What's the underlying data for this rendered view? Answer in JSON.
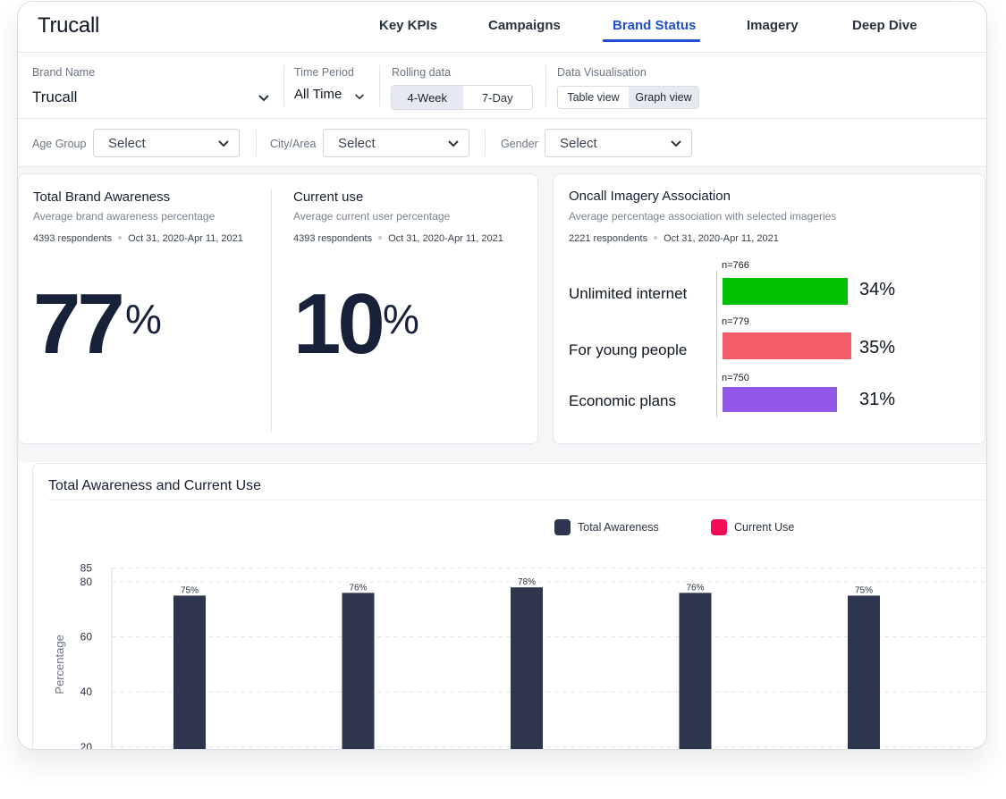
{
  "app": {
    "logo": "Trucall"
  },
  "nav": {
    "tabs": [
      {
        "label": "Key KPIs",
        "active": false
      },
      {
        "label": "Campaigns",
        "active": false
      },
      {
        "label": "Brand Status",
        "active": true
      },
      {
        "label": "Imagery",
        "active": false
      },
      {
        "label": "Deep Dive",
        "active": false
      }
    ],
    "accent": "#1f4fd0"
  },
  "filters": {
    "brand_name": {
      "label": "Brand Name",
      "value": "Trucall"
    },
    "time_period": {
      "label": "Time Period",
      "value": "All Time"
    },
    "rolling_data": {
      "label": "Rolling data",
      "options": [
        "4-Week",
        "7-Day"
      ],
      "selected": "4-Week"
    },
    "data_visualisation": {
      "label": "Data Visualisation",
      "options": [
        "Table view",
        "Graph view"
      ],
      "selected": "Graph view"
    },
    "age_group": {
      "label": "Age Group",
      "value": "Select"
    },
    "city_area": {
      "label": "City/Area",
      "value": "Select"
    },
    "gender": {
      "label": "Gender",
      "value": "Select"
    }
  },
  "cards": {
    "awareness": {
      "title": "Total Brand Awareness",
      "subtitle": "Average brand awareness percentage",
      "respondents": "4393 respondents",
      "date_range": "Oct 31, 2020-Apr 11, 2021",
      "value": "77",
      "unit": "%"
    },
    "current_use": {
      "title": "Current use",
      "subtitle": "Average current user percentage",
      "respondents": "4393 respondents",
      "date_range": "Oct 31, 2020-Apr 11, 2021",
      "value": "10",
      "unit": "%"
    },
    "imagery": {
      "title": "Oncall Imagery Association",
      "subtitle": "Average percentage association with selected imageries",
      "respondents": "2221 respondents",
      "date_range": "Oct 31, 2020-Apr 11, 2021",
      "items": [
        {
          "label": "Unlimited internet",
          "n": "n=766",
          "pct_label": "34%",
          "value": 34,
          "color": "#00c000"
        },
        {
          "label": "For young people",
          "n": "n=779",
          "pct_label": "35%",
          "value": 35,
          "color": "#f45d68"
        },
        {
          "label": "Economic plans",
          "n": "n=750",
          "pct_label": "31%",
          "value": 31,
          "color": "#9458e8"
        }
      ]
    }
  },
  "chart_section": {
    "title": "Total Awareness and Current Use",
    "legend": [
      {
        "name": "Total Awareness",
        "color": "#2d364d"
      },
      {
        "name": "Current Use",
        "color": "#f50b53"
      }
    ]
  },
  "chart_data": {
    "type": "bar",
    "title": "Total Awareness and Current Use",
    "ylabel": "Percentage",
    "xlabel": "",
    "ylim": [
      0,
      85
    ],
    "yticks": [
      20,
      40,
      60,
      80,
      85
    ],
    "grid": true,
    "legend_position": "top-center",
    "series": [
      {
        "name": "Total Awareness",
        "color": "#2d364d",
        "values": [
          75,
          76,
          78,
          76,
          75
        ],
        "labels": [
          "75%",
          "76%",
          "78%",
          "76%",
          "75%"
        ]
      }
    ]
  }
}
